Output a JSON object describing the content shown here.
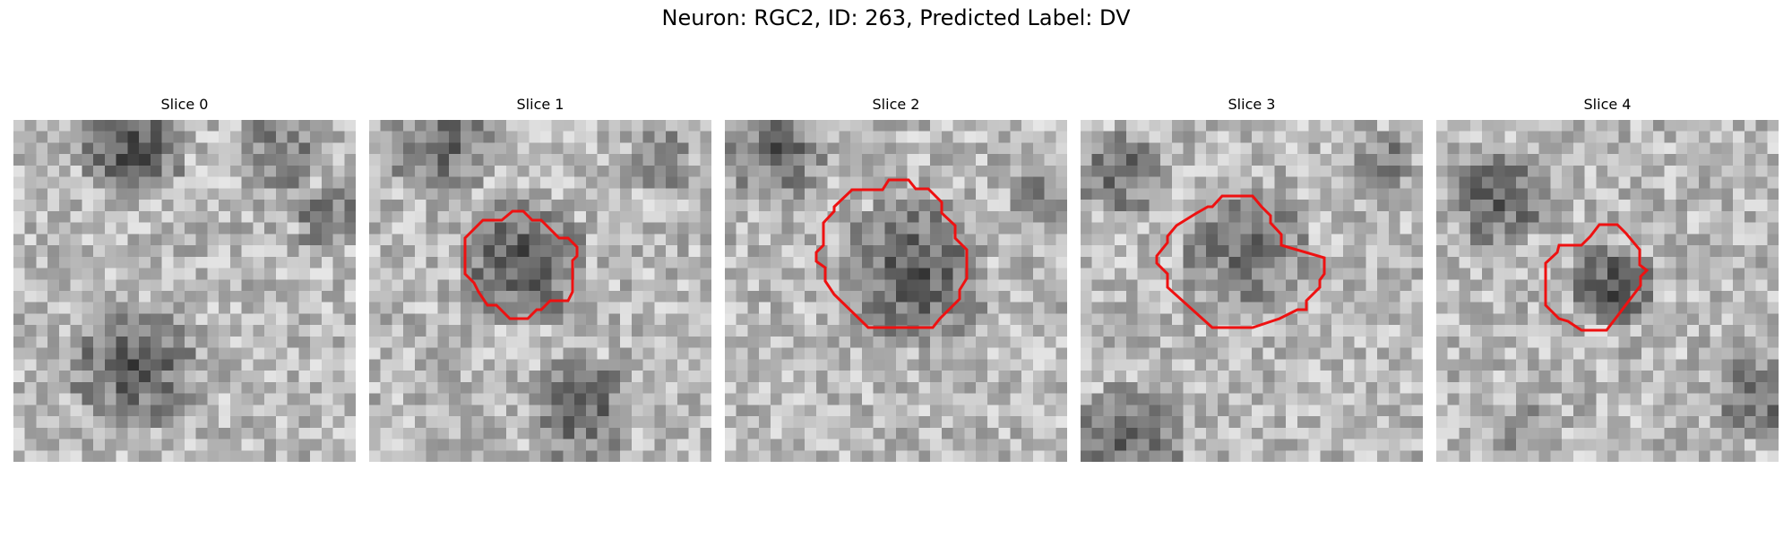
{
  "figure": {
    "title": "Neuron: RGC2, ID: 263, Predicted Label: DV"
  },
  "colors": {
    "background": "#ffffff",
    "contour": "#ee1111",
    "colormap": "gray"
  },
  "panels": [
    {
      "title": "Slice 0",
      "has_contour": false
    },
    {
      "title": "Slice 1",
      "has_contour": true
    },
    {
      "title": "Slice 2",
      "has_contour": true
    },
    {
      "title": "Slice 3",
      "has_contour": true
    },
    {
      "title": "Slice 4",
      "has_contour": true
    }
  ]
}
